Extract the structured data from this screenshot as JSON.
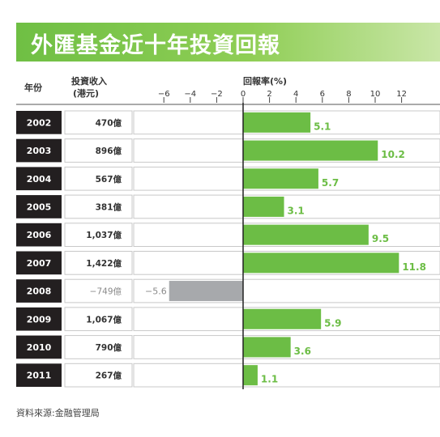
{
  "title": "外匯基金近十年投資回報",
  "headers": {
    "year": "年份",
    "income": "投資收入",
    "income_unit": "(港元)",
    "return_rate": "回報率(%)"
  },
  "source": "資料來源:金融管理局",
  "colors": {
    "title_bar": "#6fbf44",
    "positive_bar": "#6cbd45",
    "negative_bar": "#a7a9ac",
    "year_cell": "#231f20",
    "value_label": "#6cbd45"
  },
  "chart_data": {
    "type": "bar",
    "orientation": "horizontal",
    "categories": [
      "2002",
      "2003",
      "2004",
      "2005",
      "2006",
      "2007",
      "2008",
      "2009",
      "2010",
      "2011"
    ],
    "income": [
      "470億",
      "896億",
      "567億",
      "381億",
      "1,037億",
      "1,422億",
      "−749億",
      "1,067億",
      "790億",
      "267億"
    ],
    "values": [
      5.1,
      10.2,
      5.7,
      3.1,
      9.5,
      11.8,
      -5.6,
      5.9,
      3.6,
      1.1
    ],
    "value_labels": [
      "5.1",
      "10.2",
      "5.7",
      "3.1",
      "9.5",
      "11.8",
      "−5.6",
      "5.9",
      "3.6",
      "1.1"
    ],
    "ticks": [
      -6,
      -4,
      -2,
      0,
      2,
      4,
      6,
      8,
      10,
      12
    ],
    "tick_labels": [
      "−6",
      "−4",
      "−2",
      "0",
      "2",
      "4",
      "6",
      "8",
      "10",
      "12"
    ],
    "xlim": [
      -8,
      14
    ],
    "xlabel": "回報率(%)",
    "ylabel": "年份"
  }
}
